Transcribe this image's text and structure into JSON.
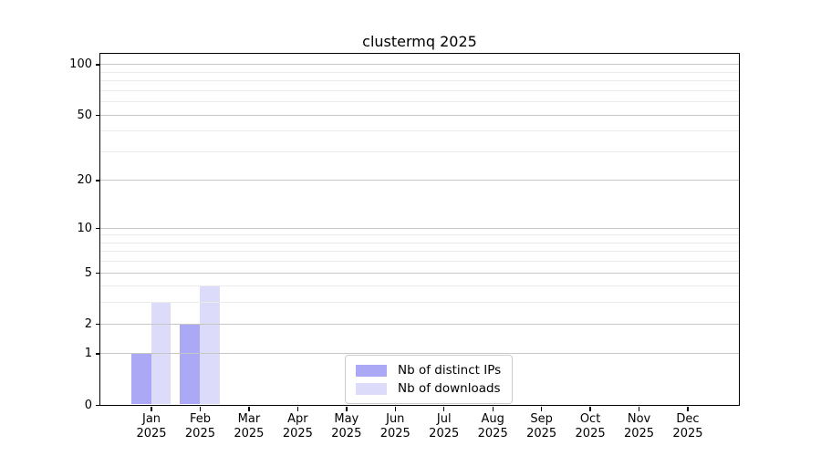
{
  "title": "clustermq 2025",
  "chart_data": {
    "type": "bar",
    "title": "clustermq 2025",
    "categories": [
      "Jan",
      "Feb",
      "Mar",
      "Apr",
      "May",
      "Jun",
      "Jul",
      "Aug",
      "Sep",
      "Oct",
      "Nov",
      "Dec"
    ],
    "category_year": "2025",
    "series": [
      {
        "name": "Nb of distinct IPs",
        "color": "#aba9f5",
        "values": [
          1,
          2,
          0,
          0,
          0,
          0,
          0,
          0,
          0,
          0,
          0,
          0
        ]
      },
      {
        "name": "Nb of downloads",
        "color": "#dddbfa",
        "values": [
          3,
          4,
          0,
          0,
          0,
          0,
          0,
          0,
          0,
          0,
          0,
          0
        ]
      }
    ],
    "xlabel": "",
    "ylabel": "",
    "yscale": "log1p",
    "ylim": [
      0,
      116
    ],
    "yticks": [
      0,
      1,
      2,
      5,
      10,
      20,
      50,
      100
    ],
    "minor_yticks": [
      3,
      4,
      6,
      7,
      8,
      9,
      30,
      40,
      60,
      70,
      80,
      90
    ],
    "grid": "horizontal major+minor, drawn above bars",
    "legend_position": "lower center"
  },
  "colors": {
    "background": "#ffffff",
    "axis": "#000000",
    "grid_major": "#c6c6c6",
    "grid_minor": "#ebebeb",
    "legend_border": "#cccccc",
    "bar_distinct_ips": "#aba9f5",
    "bar_downloads": "#dddbfa"
  }
}
